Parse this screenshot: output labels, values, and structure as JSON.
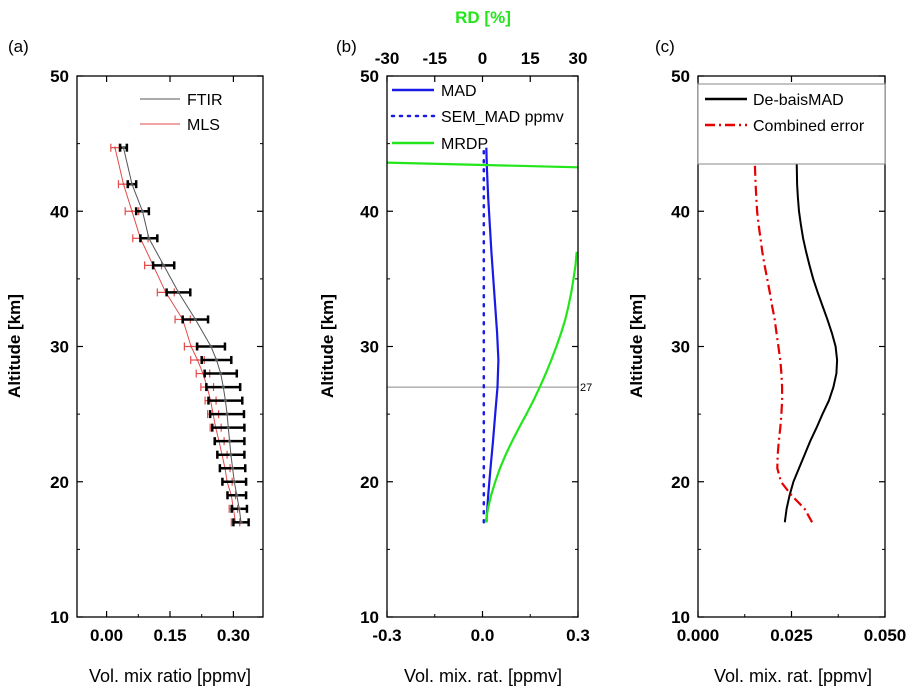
{
  "colors": {
    "ftir": "#555555",
    "mls": "#e34a4a",
    "mad": "#1a1ae6",
    "sem_mad": "#1a1ae6",
    "mrdp": "#22e61a",
    "rd_axis": "#22e61a",
    "debias": "#000000",
    "combined": "#e60000",
    "refline": "#888888"
  },
  "chart_data": [
    {
      "panel": "(a)",
      "type": "line",
      "xlabel": "Vol. mix ratio [ppmv]",
      "ylabel": "Altitude [km]",
      "xlim": [
        -0.07,
        0.37
      ],
      "ylim": [
        10,
        50
      ],
      "xticks": [
        0.0,
        0.15,
        0.3
      ],
      "xtick_labels": [
        "0.00",
        "0.15",
        "0.30"
      ],
      "yticks": [
        10,
        20,
        30,
        40,
        50
      ],
      "ytick_labels": [
        "10",
        "20",
        "30",
        "40",
        "50"
      ],
      "legend": {
        "position": "top-right",
        "entries": [
          "FTIR",
          "MLS"
        ]
      },
      "series": [
        {
          "name": "FTIR",
          "color_key": "ftir",
          "altitude": [
            17,
            18,
            19,
            20,
            21,
            22,
            23,
            24,
            25,
            26,
            27,
            28,
            29,
            30,
            32,
            34,
            36,
            38,
            40,
            42,
            44.7
          ],
          "values": [
            0.318,
            0.314,
            0.308,
            0.302,
            0.298,
            0.294,
            0.291,
            0.288,
            0.285,
            0.281,
            0.276,
            0.27,
            0.26,
            0.247,
            0.21,
            0.17,
            0.135,
            0.1,
            0.085,
            0.06,
            0.04
          ],
          "error": [
            0.018,
            0.018,
            0.022,
            0.028,
            0.03,
            0.032,
            0.035,
            0.038,
            0.04,
            0.04,
            0.04,
            0.038,
            0.035,
            0.033,
            0.03,
            0.028,
            0.025,
            0.02,
            0.015,
            0.01,
            0.008
          ]
        },
        {
          "name": "MLS",
          "color_key": "mls",
          "altitude": [
            17,
            18,
            19,
            20,
            21,
            22,
            23,
            24,
            25,
            26,
            27,
            28,
            29,
            30,
            32,
            34,
            36,
            38,
            40,
            42,
            44.7
          ],
          "values": [
            0.305,
            0.3,
            0.295,
            0.285,
            0.28,
            0.273,
            0.266,
            0.258,
            0.252,
            0.246,
            0.238,
            0.228,
            0.215,
            0.2,
            0.18,
            0.14,
            0.11,
            0.08,
            0.06,
            0.04,
            0.02
          ],
          "error": [
            0.01,
            0.01,
            0.01,
            0.012,
            0.012,
            0.012,
            0.012,
            0.013,
            0.013,
            0.013,
            0.015,
            0.016,
            0.016,
            0.016,
            0.018,
            0.02,
            0.02,
            0.018,
            0.016,
            0.012,
            0.01
          ]
        }
      ]
    },
    {
      "panel": "(b)",
      "type": "line",
      "xlabel": "Vol. mix. rat. [ppmv]",
      "ylabel": "Altitude [km]",
      "xlim": [
        -0.3,
        0.3
      ],
      "ylim": [
        10,
        50
      ],
      "xticks": [
        -0.3,
        0.0,
        0.3
      ],
      "xtick_labels": [
        "-0.3",
        "0.0",
        "0.3"
      ],
      "yticks": [
        10,
        20,
        30,
        40,
        50
      ],
      "ytick_labels": [
        "10",
        "20",
        "30",
        "40",
        "50"
      ],
      "top_axis": {
        "label": "RD [%]",
        "lim": [
          -30,
          30
        ],
        "ticks": [
          -30,
          -15,
          0,
          15,
          30
        ],
        "tick_labels": [
          "-30",
          "-15",
          "0",
          "15",
          "30"
        ]
      },
      "reference_line": {
        "altitude": 27,
        "label": "27"
      },
      "legend": {
        "position": "top-left",
        "entries": [
          "MAD",
          "SEM_MAD ppmv",
          "MRDP"
        ]
      },
      "series": [
        {
          "name": "MAD",
          "color_key": "mad",
          "axis": "bottom",
          "altitude": [
            17,
            19,
            21,
            23,
            25,
            27,
            29,
            31,
            33,
            35,
            37,
            39,
            41,
            43,
            44.7
          ],
          "values": [
            0.012,
            0.018,
            0.025,
            0.033,
            0.04,
            0.047,
            0.05,
            0.046,
            0.04,
            0.034,
            0.028,
            0.023,
            0.018,
            0.014,
            0.012
          ]
        },
        {
          "name": "SEM_MAD ppmv",
          "color_key": "sem_mad",
          "axis": "bottom",
          "altitude": [
            17,
            20,
            23,
            26,
            29,
            32,
            35,
            38,
            41,
            44.7
          ],
          "values": [
            0.004,
            0.004,
            0.004,
            0.004,
            0.004,
            0.004,
            0.004,
            0.004,
            0.004,
            0.004
          ]
        },
        {
          "name": "MRDP",
          "color_key": "mrdp",
          "axis": "top",
          "altitude": [
            17,
            18,
            19,
            20,
            21,
            22,
            23,
            24,
            25,
            26,
            27,
            28,
            29,
            30,
            31,
            32,
            33,
            34,
            35,
            36,
            37
          ],
          "values": [
            1.0,
            1.7,
            2.7,
            4.0,
            5.5,
            7.3,
            9.3,
            11.5,
            13.8,
            16.0,
            18.0,
            19.9,
            21.6,
            23.2,
            24.7,
            26.0,
            27.0,
            27.9,
            28.6,
            29.2,
            29.6
          ]
        },
        {
          "name": "MRDP upper segment",
          "color_key": "mrdp",
          "axis": "top",
          "altitude": [
            43.6,
            43.25
          ],
          "values": [
            -30,
            30
          ]
        }
      ]
    },
    {
      "panel": "(c)",
      "type": "line",
      "xlabel": "Vol. mix. rat. [ppmv]",
      "ylabel": "Altitude [km]",
      "xlim": [
        0.0,
        0.05
      ],
      "ylim": [
        10,
        50
      ],
      "xticks": [
        0.0,
        0.025,
        0.05
      ],
      "xtick_labels": [
        "0.000",
        "0.025",
        "0.050"
      ],
      "yticks": [
        10,
        20,
        30,
        40,
        50
      ],
      "ytick_labels": [
        "10",
        "20",
        "30",
        "40",
        "50"
      ],
      "legend": {
        "position": "top-right",
        "entries": [
          "De-baisMAD",
          "Combined error"
        ]
      },
      "series": [
        {
          "name": "De-baisMAD",
          "color_key": "debias",
          "altitude": [
            17,
            18,
            19,
            20,
            21,
            22,
            23,
            24,
            25,
            26,
            27,
            28,
            29,
            30,
            31,
            32,
            33,
            34,
            35,
            36,
            37,
            38,
            39,
            40,
            41,
            42,
            43.6
          ],
          "values": [
            0.0232,
            0.0237,
            0.0245,
            0.0255,
            0.027,
            0.0285,
            0.03,
            0.0317,
            0.0333,
            0.035,
            0.0362,
            0.037,
            0.0372,
            0.0368,
            0.0358,
            0.0346,
            0.0333,
            0.032,
            0.0308,
            0.0298,
            0.0289,
            0.0281,
            0.0275,
            0.027,
            0.0267,
            0.0265,
            0.0264
          ]
        },
        {
          "name": "Combined error",
          "color_key": "combined",
          "altitude": [
            17,
            18,
            19,
            20,
            21,
            22,
            23,
            24,
            25,
            26,
            27,
            28,
            29,
            30,
            31,
            32,
            33,
            34,
            35,
            36,
            37,
            38,
            39,
            40,
            41,
            42,
            43.6
          ],
          "values": [
            0.0305,
            0.0285,
            0.025,
            0.0222,
            0.0212,
            0.0213,
            0.0216,
            0.022,
            0.0223,
            0.0225,
            0.0225,
            0.0223,
            0.022,
            0.0215,
            0.021,
            0.0205,
            0.0198,
            0.0192,
            0.0185,
            0.0178,
            0.0172,
            0.0167,
            0.0162,
            0.0158,
            0.0156,
            0.0154,
            0.0152
          ]
        }
      ]
    }
  ]
}
